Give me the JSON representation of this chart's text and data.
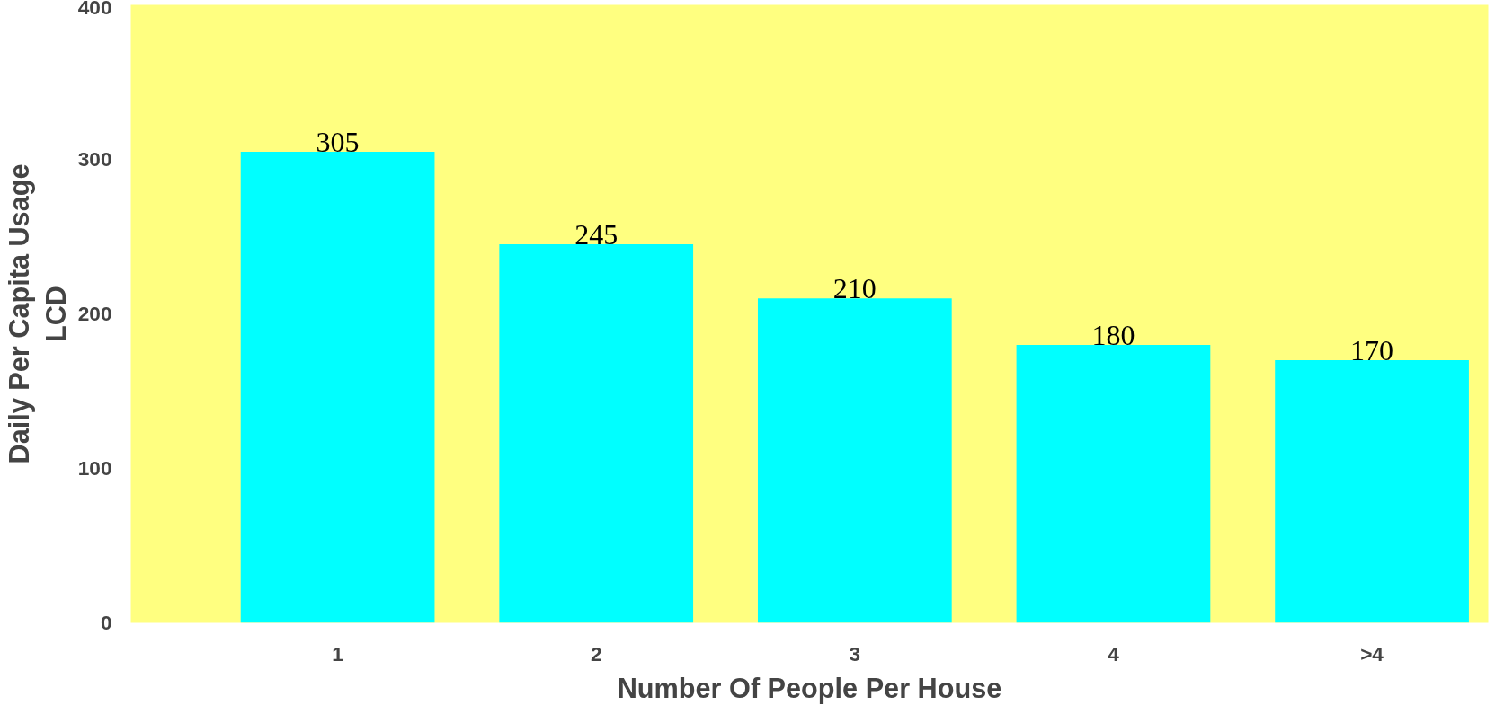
{
  "chart_data": {
    "type": "bar",
    "xlabel": "Number Of People Per House",
    "ylabel": "Daily Per Capita Usage\nLCD",
    "categories": [
      "1",
      "2",
      "3",
      "4",
      ">4"
    ],
    "values": [
      305,
      245,
      210,
      180,
      170
    ],
    "color": "#00ffff",
    "ylim": [
      0,
      400
    ],
    "yticks": [
      0,
      100,
      200,
      300,
      400
    ],
    "data_labels": true,
    "grid": false
  }
}
